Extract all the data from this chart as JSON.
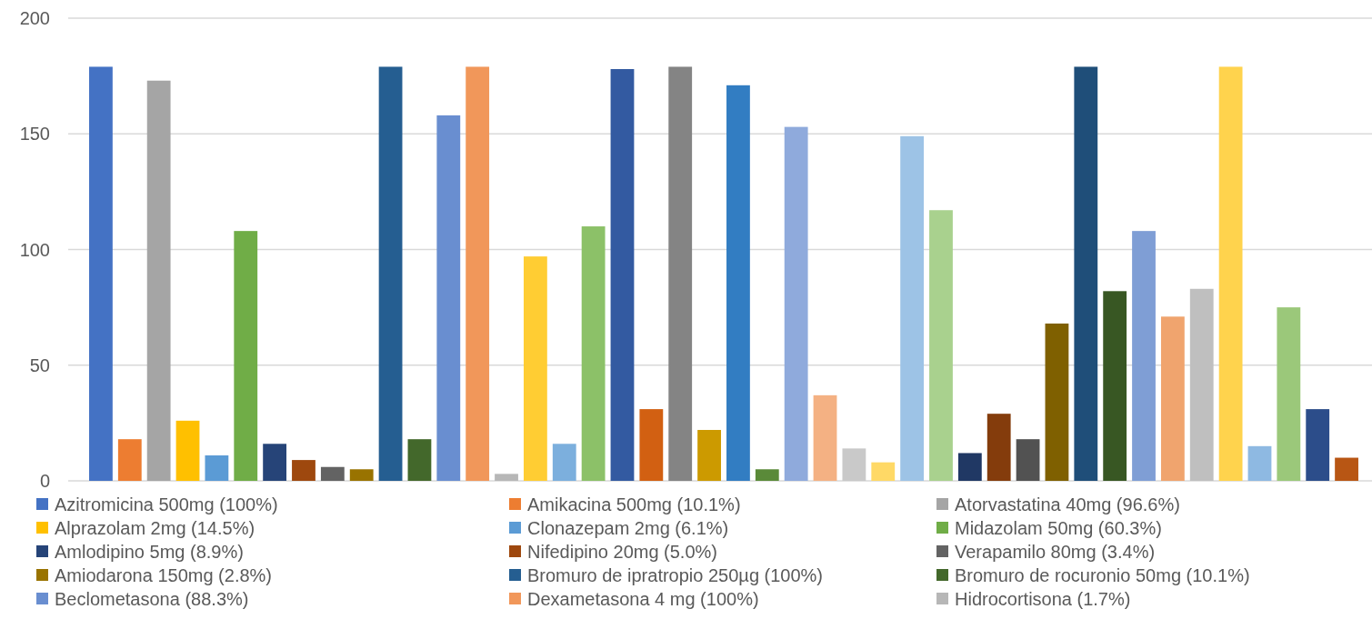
{
  "chart_data": {
    "type": "bar",
    "categories": [
      null
    ],
    "ylim": [
      0,
      200
    ],
    "yticks": [
      0,
      50,
      100,
      150,
      200
    ],
    "grid": "y",
    "legend": "bottom",
    "series": [
      {
        "name": "Azitromicina 500mg (100%)",
        "color": "#4472c4",
        "values": [
          179
        ]
      },
      {
        "name": "Amikacina 500mg (10.1%)",
        "color": "#ed7d31",
        "values": [
          18
        ]
      },
      {
        "name": "Atorvastatina 40mg (96.6%)",
        "color": "#a5a5a5",
        "values": [
          173
        ]
      },
      {
        "name": "Alprazolam 2mg (14.5%)",
        "color": "#ffc000",
        "values": [
          26
        ]
      },
      {
        "name": "Clonazepam 2mg (6.1%)",
        "color": "#5b9bd5",
        "values": [
          11
        ]
      },
      {
        "name": "Midazolam 50mg (60.3%)",
        "color": "#70ad47",
        "values": [
          108
        ]
      },
      {
        "name": "Amlodipino 5mg (8.9%)",
        "color": "#264478",
        "values": [
          16
        ]
      },
      {
        "name": "Nifedipino 20mg (5.0%)",
        "color": "#9e480e",
        "values": [
          9
        ]
      },
      {
        "name": "Verapamilo 80mg (3.4%)",
        "color": "#636363",
        "values": [
          6
        ]
      },
      {
        "name": "Amiodarona 150mg (2.8%)",
        "color": "#997300",
        "values": [
          5
        ]
      },
      {
        "name": "Bromuro de ipratropio 250µg (100%)",
        "color": "#255e91",
        "values": [
          179
        ]
      },
      {
        "name": "Bromuro de rocuronio 50mg (10.1%)",
        "color": "#43682b",
        "values": [
          18
        ]
      },
      {
        "name": "Beclometasona (88.3%)",
        "color": "#698ed0",
        "values": [
          158
        ]
      },
      {
        "name": "Dexametasona 4 mg (100%)",
        "color": "#f1975a",
        "values": [
          179
        ]
      },
      {
        "name": "Hidrocortisona (1.7%)",
        "color": "#b7b7b7",
        "values": [
          3
        ]
      },
      {
        "color": "#ffcd33",
        "values": [
          97
        ]
      },
      {
        "color": "#7cafdd",
        "values": [
          16
        ]
      },
      {
        "color": "#8cc168",
        "values": [
          110
        ]
      },
      {
        "color": "#335aa1",
        "values": [
          178
        ]
      },
      {
        "color": "#d26012",
        "values": [
          31
        ]
      },
      {
        "color": "#848484",
        "values": [
          179
        ]
      },
      {
        "color": "#cc9a00",
        "values": [
          22
        ]
      },
      {
        "color": "#327dc2",
        "values": [
          171
        ]
      },
      {
        "color": "#5a8a39",
        "values": [
          5
        ]
      },
      {
        "color": "#8faadc",
        "values": [
          153
        ]
      },
      {
        "color": "#f4b183",
        "values": [
          37
        ]
      },
      {
        "color": "#c9c9c9",
        "values": [
          14
        ]
      },
      {
        "color": "#ffd966",
        "values": [
          8
        ]
      },
      {
        "color": "#9dc3e6",
        "values": [
          149
        ]
      },
      {
        "color": "#a9d18e",
        "values": [
          117
        ]
      },
      {
        "color": "#203864",
        "values": [
          12
        ]
      },
      {
        "color": "#843c0c",
        "values": [
          29
        ]
      },
      {
        "color": "#525252",
        "values": [
          18
        ]
      },
      {
        "color": "#7f6000",
        "values": [
          68
        ]
      },
      {
        "color": "#1f4e79",
        "values": [
          179
        ]
      },
      {
        "color": "#385723",
        "values": [
          82
        ]
      },
      {
        "color": "#7f9ed5",
        "values": [
          108
        ]
      },
      {
        "color": "#f0a46e",
        "values": [
          71
        ]
      },
      {
        "color": "#bfbfbf",
        "values": [
          83
        ]
      },
      {
        "color": "#ffd34d",
        "values": [
          179
        ]
      },
      {
        "color": "#8eb9e2",
        "values": [
          15
        ]
      },
      {
        "color": "#9bc87a",
        "values": [
          75
        ]
      },
      {
        "color": "#2c4d8a",
        "values": [
          31
        ]
      },
      {
        "color": "#b85614",
        "values": [
          10
        ]
      }
    ]
  }
}
